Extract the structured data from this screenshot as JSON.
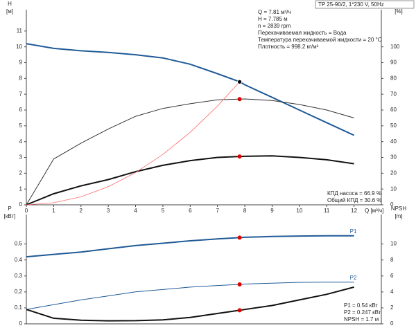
{
  "chart_data": [
    {
      "type": "line",
      "title": "TP 25-90/2, 1*230 V, 50Hz",
      "info": [
        "Q = 7.81 м³/ч",
        "H = 7.785 м",
        "n = 2839 rpm",
        "Перекачиваемая жидкость = Вода",
        "Температура перекачиваемой жидкости = 20 °C",
        "Плотность = 998.2 кг/м³"
      ],
      "notes": [
        "КПД насоса = 66.9 %",
        "Общий КПД = 30.6 %"
      ],
      "ylabel": [
        "H",
        "[м]"
      ],
      "y2label": [
        "eta",
        "[%]"
      ],
      "xlabel": "Q [м³/ч]",
      "x": [
        0,
        1,
        2,
        3,
        4,
        5,
        6,
        7,
        7.81,
        8,
        9,
        10,
        11,
        12
      ],
      "duty_point_x": 7.81,
      "xlim": [
        0,
        13
      ],
      "xticks": [
        0,
        1,
        2,
        3,
        4,
        5,
        6,
        7,
        8,
        9,
        10,
        11,
        12
      ],
      "ylim": [
        0,
        12
      ],
      "yticks": [
        0,
        1,
        2,
        3,
        4,
        5,
        6,
        7,
        8,
        9,
        10,
        11
      ],
      "y2lim": [
        0,
        120
      ],
      "y2ticks": [
        0,
        10,
        20,
        30,
        40,
        50,
        60,
        70,
        80,
        90,
        100
      ],
      "series": [
        {
          "color": "#1f5a96",
          "width": 2,
          "point_color": "#f5c518",
          "values": [
            10.2,
            9.9,
            9.75,
            9.65,
            9.5,
            9.3,
            8.9,
            8.3,
            7.785,
            7.6,
            6.8,
            6.0,
            5.2,
            4.4
          ]
        },
        {
          "color": "#333333",
          "width": 1,
          "axis": "y2",
          "point_color": "#e00000",
          "values": [
            0,
            29,
            39,
            48,
            56,
            61,
            64,
            66.5,
            66.9,
            67,
            66,
            63.5,
            60,
            55
          ]
        },
        {
          "color": "#111111",
          "width": 2,
          "axis": "y2",
          "point_color": "#e00000",
          "values": [
            0,
            7,
            12,
            16,
            21,
            25,
            28,
            30,
            30.6,
            30.7,
            31,
            30,
            28.5,
            26
          ]
        },
        {
          "color": "#ff6a6a",
          "width": 0.8,
          "values": [
            0,
            0.13,
            0.51,
            1.15,
            2.04,
            3.19,
            4.59,
            6.25,
            7.785,
            null,
            null,
            null,
            null,
            null
          ]
        }
      ]
    },
    {
      "type": "line",
      "notes": [
        "P1 = 0.54 кВт",
        "P2 = 0.247 кВт",
        "NPSH = 1.7 м"
      ],
      "ylabel": [
        "P",
        "[кВт]"
      ],
      "y2label": [
        "NPSH",
        "[m]"
      ],
      "x": [
        0,
        1,
        2,
        3,
        4,
        5,
        6,
        7,
        7.81,
        8,
        9,
        10,
        11,
        12
      ],
      "duty_point_x": 7.81,
      "xlim": [
        0,
        13
      ],
      "ylim": [
        0,
        0.65
      ],
      "yticks": [
        0,
        0.1,
        0.2,
        0.3,
        0.4,
        0.5
      ],
      "y2lim": [
        0,
        13
      ],
      "y2ticks": [
        0,
        2,
        4,
        6,
        8,
        10
      ],
      "series": [
        {
          "name": "P1",
          "color": "#1f5a96",
          "width": 2,
          "point_color": "#e00000",
          "values": [
            0.42,
            0.435,
            0.45,
            0.47,
            0.49,
            0.505,
            0.52,
            0.532,
            0.54,
            0.542,
            0.547,
            0.55,
            0.551,
            0.551
          ]
        },
        {
          "name": "P2",
          "color": "#1f5a96",
          "width": 1,
          "point_color": "#e00000",
          "values": [
            0.09,
            0.12,
            0.15,
            0.175,
            0.2,
            0.215,
            0.23,
            0.24,
            0.247,
            0.249,
            0.255,
            0.26,
            0.261,
            0.261
          ]
        },
        {
          "color": "#111111",
          "width": 2,
          "axis": "y2",
          "point_color": "#e00000",
          "values": [
            1.8,
            0.7,
            0.45,
            0.38,
            0.4,
            0.5,
            0.8,
            1.3,
            1.7,
            1.8,
            2.3,
            3.0,
            3.7,
            4.6
          ]
        }
      ]
    }
  ]
}
